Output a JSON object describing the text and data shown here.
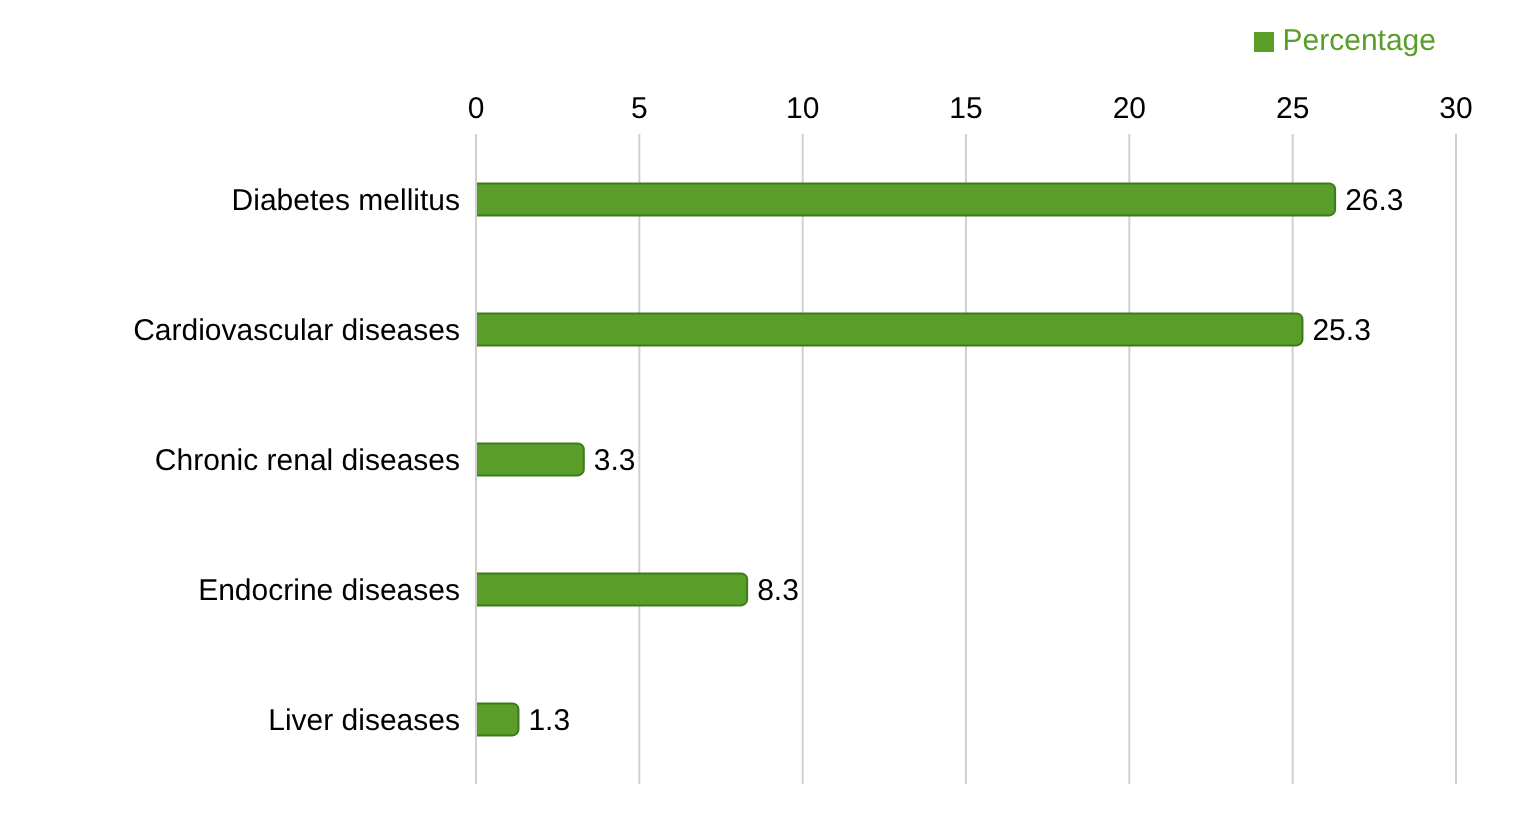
{
  "chart_data": {
    "type": "bar",
    "orientation": "horizontal",
    "categories": [
      "Diabetes mellitus",
      "Cardiovascular diseases",
      "Chronic renal diseases",
      "Endocrine diseases",
      "Liver diseases"
    ],
    "series": [
      {
        "name": "Percentage",
        "color": "#5a9e2a",
        "values": [
          26.3,
          25.3,
          3.3,
          8.3,
          1.3
        ]
      }
    ],
    "xlim": [
      0,
      30
    ],
    "xticks": [
      0,
      5,
      10,
      15,
      20,
      25,
      30
    ],
    "grid": "x",
    "legend": "top right",
    "data_labels": true
  }
}
